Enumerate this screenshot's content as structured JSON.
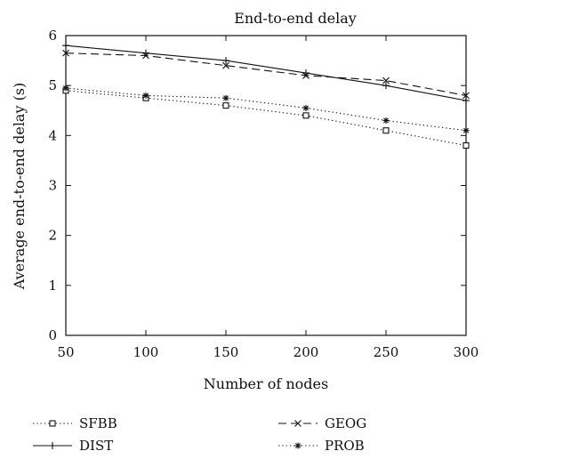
{
  "chart_data": {
    "type": "line",
    "title": "End-to-end delay",
    "xlabel": "Number of nodes",
    "ylabel": "Average end-to-end delay (s)",
    "x": [
      50,
      100,
      150,
      200,
      250,
      300
    ],
    "xlim": [
      50,
      300
    ],
    "ylim": [
      0,
      6
    ],
    "xticks": [
      50,
      100,
      150,
      200,
      250,
      300
    ],
    "yticks": [
      0,
      1,
      2,
      3,
      4,
      5,
      6
    ],
    "grid": false,
    "legend_position": "bottom",
    "series": [
      {
        "name": "SFBB",
        "values": [
          4.9,
          4.75,
          4.6,
          4.4,
          4.1,
          3.8
        ],
        "line_style": "dotted",
        "marker": "square"
      },
      {
        "name": "GEOG",
        "values": [
          5.65,
          5.6,
          5.4,
          5.2,
          5.1,
          4.8
        ],
        "line_style": "dashed",
        "marker": "x"
      },
      {
        "name": "DIST",
        "values": [
          5.8,
          5.65,
          5.5,
          5.25,
          5.0,
          4.7
        ],
        "line_style": "solid",
        "marker": "plus"
      },
      {
        "name": "PROB",
        "values": [
          4.95,
          4.8,
          4.75,
          4.55,
          4.3,
          4.1
        ],
        "line_style": "dotted",
        "marker": "star"
      }
    ]
  }
}
